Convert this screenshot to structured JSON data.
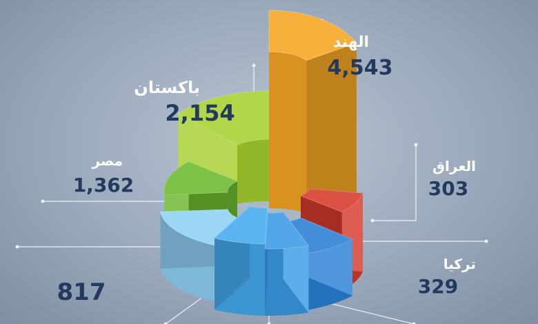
{
  "chart_data": {
    "type": "pie",
    "title": "",
    "slices": [
      {
        "label": "الهند",
        "value": 4543,
        "value_text": "4,543",
        "color": "#f5a623"
      },
      {
        "label": "العراق",
        "value": 303,
        "value_text": "303",
        "color": "#ef7d22"
      },
      {
        "label": "تركيا",
        "value": 329,
        "value_text": "329",
        "color": "#d63a2c"
      },
      {
        "label": "",
        "value": null,
        "value_text": "",
        "color": "#2a7fd4"
      },
      {
        "label": "",
        "value": null,
        "value_text": "",
        "color": "#3a9be6"
      },
      {
        "label": "",
        "value": null,
        "value_text": "",
        "color": "#45aaee"
      },
      {
        "label": "",
        "value": 817,
        "value_text": "817",
        "color": "#8fd0f4"
      },
      {
        "label": "مصر",
        "value": 1362,
        "value_text": "1,362",
        "color": "#6cb82e"
      },
      {
        "label": "باكستان",
        "value": 2154,
        "value_text": "2,154",
        "color": "#a8d030"
      }
    ]
  }
}
